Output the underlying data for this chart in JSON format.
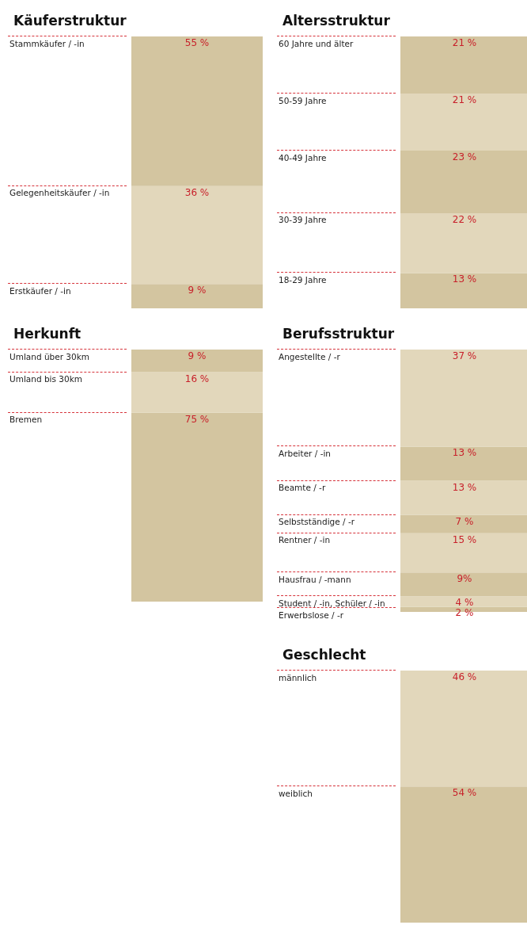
{
  "chart_data": [
    {
      "type": "bar",
      "title": "Käuferstruktur",
      "categories": [
        null
      ],
      "stacked": true,
      "legend": false,
      "series": [
        {
          "name": "Erstkäufer / -in",
          "color": "#d3c5a0",
          "values": [
            9
          ],
          "value_labels": [
            "9 %"
          ]
        },
        {
          "name": "Gelegenheitskäufer / -in",
          "color": "#e2d7bb",
          "values": [
            36
          ],
          "value_labels": [
            "36 %"
          ]
        },
        {
          "name": "Stammkäufer / -in",
          "color": "#d3c5a0",
          "values": [
            55
          ],
          "value_labels": [
            "55 %"
          ]
        }
      ]
    },
    {
      "type": "bar",
      "title": "Altersstruktur",
      "categories": [
        null
      ],
      "stacked": true,
      "legend": false,
      "series": [
        {
          "name": "18-29 Jahre",
          "color": "#d3c5a0",
          "values": [
            13
          ],
          "value_labels": [
            "13 %"
          ]
        },
        {
          "name": "30-39 Jahre",
          "color": "#e2d7bb",
          "values": [
            22
          ],
          "value_labels": [
            "22 %"
          ]
        },
        {
          "name": "40-49 Jahre",
          "color": "#d3c5a0",
          "values": [
            23
          ],
          "value_labels": [
            "23 %"
          ]
        },
        {
          "name": "50-59 Jahre",
          "color": "#e2d7bb",
          "values": [
            21
          ],
          "value_labels": [
            "21 %"
          ]
        },
        {
          "name": "60 Jahre und älter",
          "color": "#d3c5a0",
          "values": [
            21
          ],
          "value_labels": [
            "21 %"
          ]
        }
      ]
    },
    {
      "type": "bar",
      "title": "Herkunft",
      "categories": [
        null
      ],
      "stacked": true,
      "legend": false,
      "series": [
        {
          "name": "Bremen",
          "color": "#d3c5a0",
          "values": [
            75
          ],
          "value_labels": [
            "75 %"
          ]
        },
        {
          "name": "Umland bis 30km",
          "color": "#e2d7bb",
          "values": [
            16
          ],
          "value_labels": [
            "16 %"
          ]
        },
        {
          "name": "Umland über 30km",
          "color": "#d3c5a0",
          "values": [
            9
          ],
          "value_labels": [
            "9 %"
          ]
        }
      ]
    },
    {
      "type": "bar",
      "title": "Berufsstruktur",
      "categories": [
        null
      ],
      "stacked": true,
      "legend": false,
      "series": [
        {
          "name": "Erwerbslose / -r",
          "color": "#d3c5a0",
          "values": [
            2
          ],
          "value_labels": [
            "2 %"
          ]
        },
        {
          "name": "Student / -in, Schüler / -in",
          "color": "#e2d7bb",
          "values": [
            4
          ],
          "value_labels": [
            "4 %"
          ]
        },
        {
          "name": "Hausfrau / -mann",
          "color": "#d3c5a0",
          "values": [
            9
          ],
          "value_labels": [
            "9%"
          ]
        },
        {
          "name": "Rentner / -in",
          "color": "#e2d7bb",
          "values": [
            15
          ],
          "value_labels": [
            "15 %"
          ]
        },
        {
          "name": "Selbstständige / -r",
          "color": "#d3c5a0",
          "values": [
            7
          ],
          "value_labels": [
            "7 %"
          ]
        },
        {
          "name": "Beamte / -r",
          "color": "#e2d7bb",
          "values": [
            13
          ],
          "value_labels": [
            "13 %"
          ]
        },
        {
          "name": "Arbeiter / -in",
          "color": "#d3c5a0",
          "values": [
            13
          ],
          "value_labels": [
            "13 %"
          ]
        },
        {
          "name": "Angestellte / -r",
          "color": "#e2d7bb",
          "values": [
            37
          ],
          "value_labels": [
            "37 %"
          ]
        }
      ]
    },
    {
      "type": "bar",
      "title": "Geschlecht",
      "categories": [
        null
      ],
      "stacked": true,
      "legend": false,
      "series": [
        {
          "name": "weiblich",
          "color": "#d3c5a0",
          "values": [
            54
          ],
          "value_labels": [
            "54 %"
          ]
        },
        {
          "name": "männlich",
          "color": "#e2d7bb",
          "values": [
            46
          ],
          "value_labels": [
            "46 %"
          ]
        }
      ]
    }
  ]
}
